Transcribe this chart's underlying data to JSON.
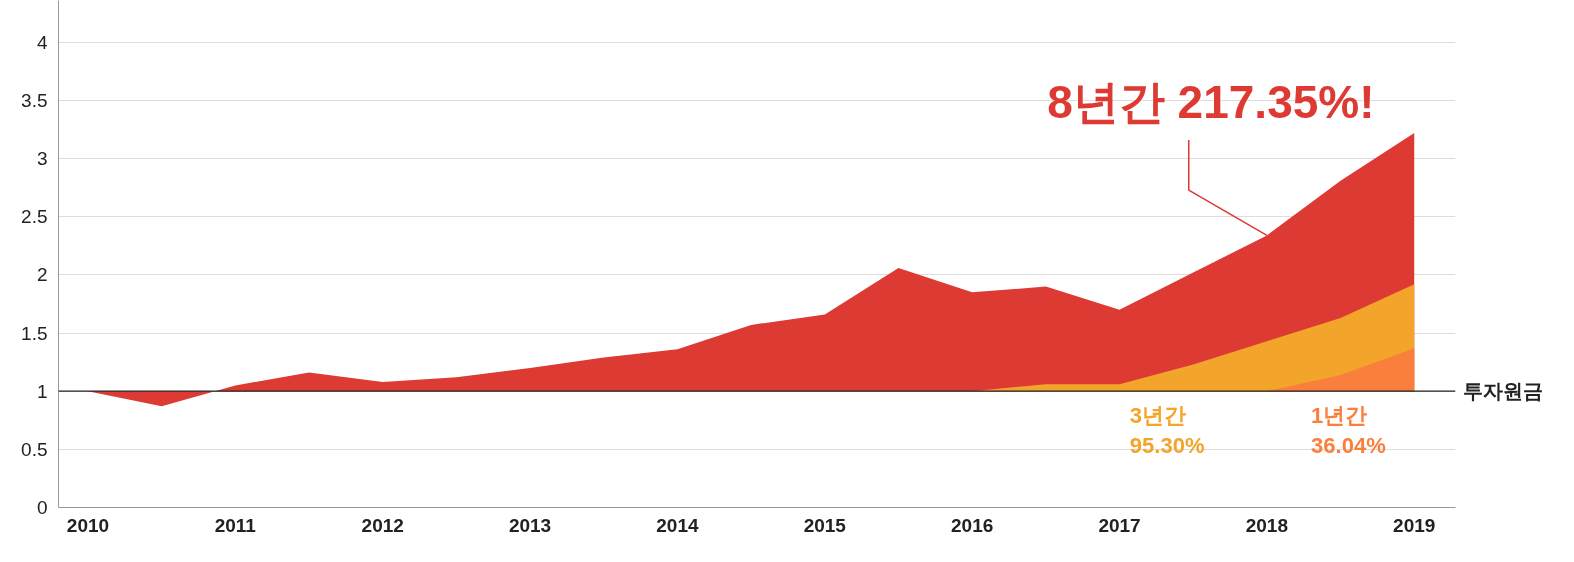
{
  "chart_data": {
    "type": "area",
    "x": [
      2010,
      2010.5,
      2011,
      2011.5,
      2012,
      2012.5,
      2013,
      2013.5,
      2014,
      2014.5,
      2015,
      2015.5,
      2016,
      2016.5,
      2017,
      2017.5,
      2018,
      2018.5,
      2019
    ],
    "series": [
      {
        "color": "#dc3a33",
        "values": [
          1.0,
          0.87,
          1.05,
          1.16,
          1.08,
          1.12,
          1.2,
          1.29,
          1.36,
          1.57,
          1.66,
          2.06,
          1.85,
          1.9,
          1.7,
          2.02,
          2.34,
          2.81,
          3.22
        ]
      },
      {
        "color": "#f2a52a",
        "values": [
          null,
          null,
          null,
          null,
          null,
          null,
          null,
          null,
          null,
          null,
          null,
          null,
          1.0,
          1.06,
          1.06,
          1.23,
          1.43,
          1.63,
          1.92
        ]
      },
      {
        "color": "#fb7f3c",
        "values": [
          null,
          null,
          null,
          null,
          null,
          null,
          null,
          null,
          null,
          null,
          null,
          null,
          null,
          null,
          null,
          null,
          1.0,
          1.14,
          1.37
        ]
      }
    ],
    "xlim": [
      2009.8,
      2019.28
    ],
    "xticks": [
      2010,
      2011,
      2012,
      2013,
      2014,
      2015,
      2016,
      2017,
      2018,
      2019
    ],
    "ylim": [
      0,
      4.36
    ],
    "yticks": [
      0,
      {
        "value": 0.5,
        "label": "0.5"
      },
      1,
      {
        "value": 1.5,
        "label": "1.5"
      },
      2,
      {
        "value": 2.5,
        "label": "2.5"
      },
      3,
      {
        "value": 3.5,
        "label": "3.5"
      },
      4
    ],
    "grid": "y",
    "ref_lines": [
      {
        "axis": "y",
        "value": 1,
        "label": "투자원금",
        "color": "#222222"
      }
    ],
    "annotations": [
      {
        "text": "8년간 217.35%!",
        "x": 2018,
        "y": 2.34
      },
      "3년간\n95.30%",
      "1년간\n36.04%"
    ]
  }
}
